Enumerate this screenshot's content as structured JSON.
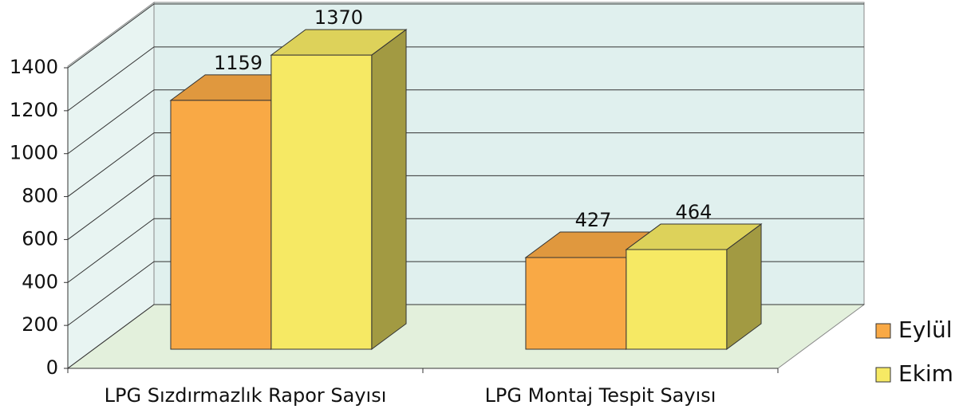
{
  "chart_data": {
    "type": "bar3d",
    "categories": [
      "LPG Sızdırmazlık Rapor Sayısı",
      "LPG Montaj Tespit Sayısı"
    ],
    "series": [
      {
        "name": "Eylül",
        "color": "#f9a945",
        "values": [
          1159,
          427
        ]
      },
      {
        "name": "Ekim",
        "color": "#f6e964",
        "values": [
          1370,
          464
        ]
      }
    ],
    "ylim": [
      0,
      1400
    ],
    "yticks": [
      0,
      200,
      400,
      600,
      800,
      1000,
      1200,
      1400
    ],
    "grid": true,
    "legend": "right"
  }
}
